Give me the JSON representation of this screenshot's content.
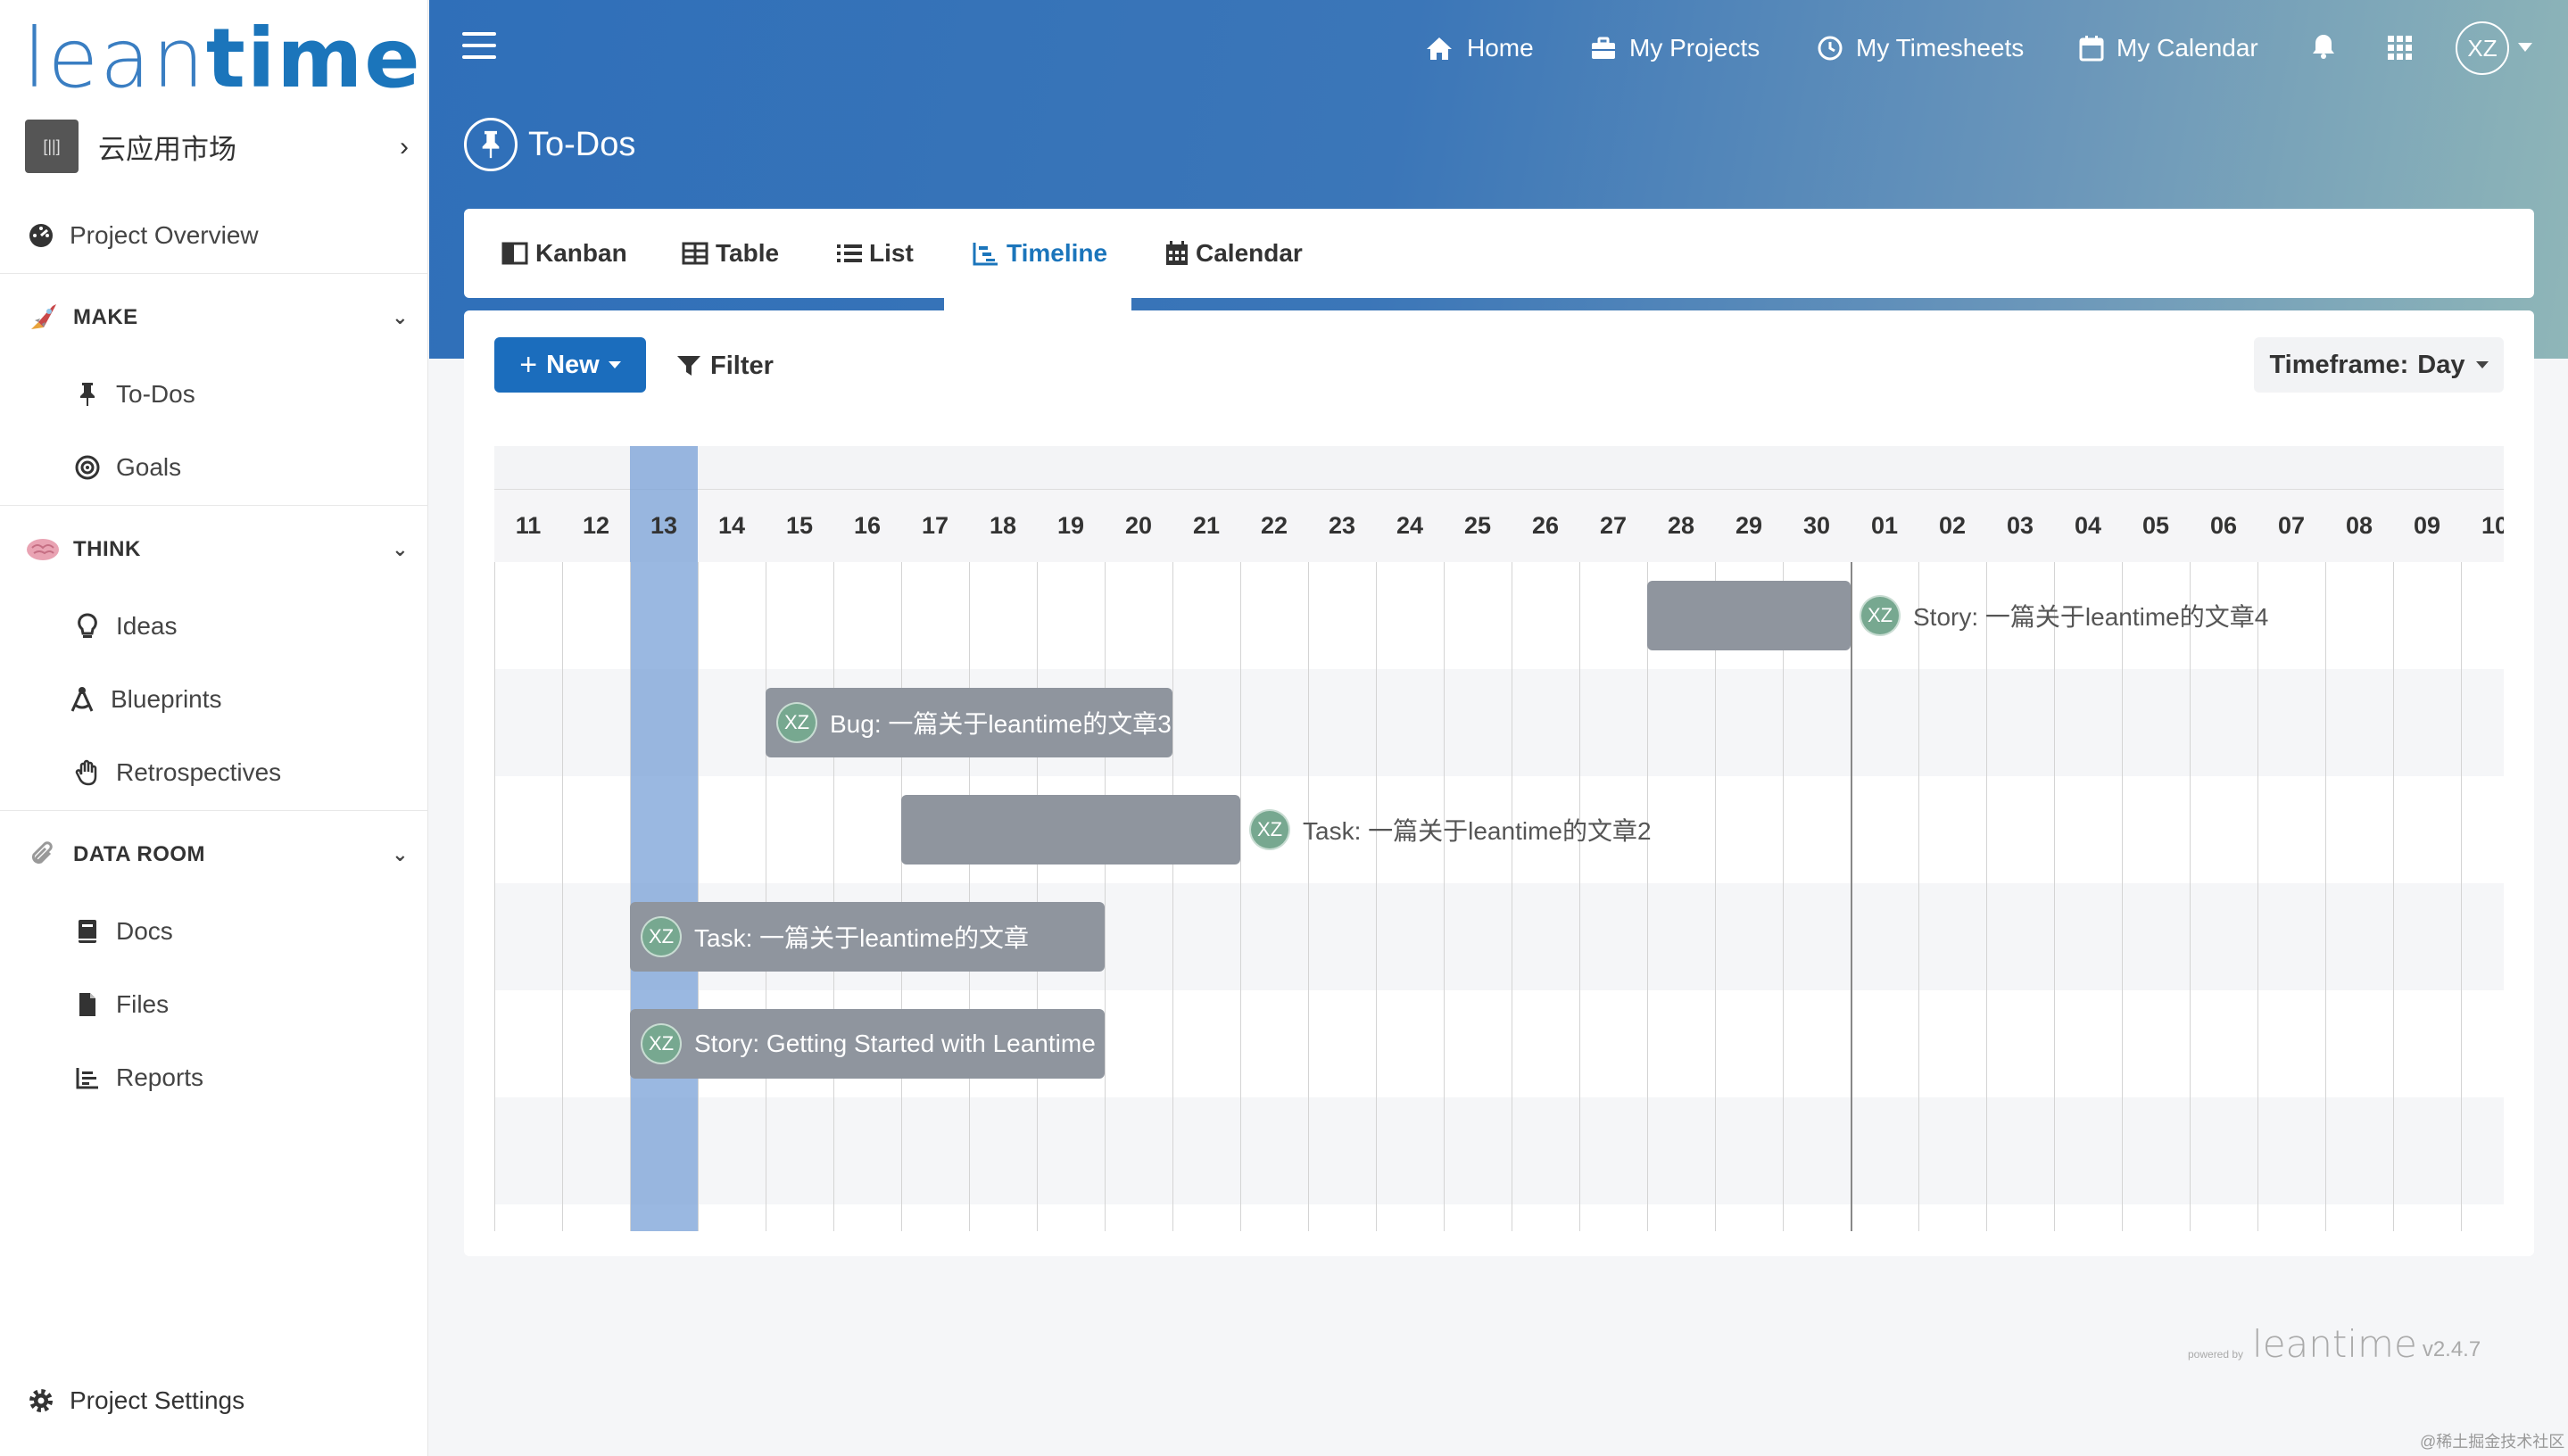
{
  "sidebar": {
    "logo_left": "lean",
    "logo_right": "time",
    "project": {
      "avatar": "[||]",
      "name": "云应用市场"
    },
    "overview": "Project Overview",
    "sections": [
      {
        "title": "MAKE",
        "items": [
          "To-Dos",
          "Goals"
        ]
      },
      {
        "title": "THINK",
        "items": [
          "Ideas",
          "Blueprints",
          "Retrospectives"
        ]
      },
      {
        "title": "DATA ROOM",
        "items": [
          "Docs",
          "Files",
          "Reports"
        ]
      }
    ],
    "settings": "Project Settings"
  },
  "header": {
    "nav": [
      "Home",
      "My Projects",
      "My Timesheets",
      "My Calendar"
    ],
    "user_initials": "XZ",
    "page_title": "To-Dos"
  },
  "tabs": [
    "Kanban",
    "Table",
    "List",
    "Timeline",
    "Calendar"
  ],
  "toolbar": {
    "new_label": "New",
    "filter_label": "Filter",
    "timeframe_label": "Timeframe:",
    "timeframe_value": "Day"
  },
  "gantt": {
    "days": [
      "11",
      "12",
      "13",
      "14",
      "15",
      "16",
      "17",
      "18",
      "19",
      "20",
      "21",
      "22",
      "23",
      "24",
      "25",
      "26",
      "27",
      "28",
      "29",
      "30",
      "01",
      "02",
      "03",
      "04",
      "05",
      "06",
      "07",
      "08",
      "09",
      "10"
    ],
    "today_index": 2,
    "month_boundary_index": 20,
    "tasks": [
      {
        "label": "Story: 一篇关于leantime的文章4",
        "start": 17,
        "end": 20,
        "label_inside": false,
        "avatar": "XZ"
      },
      {
        "label": "Bug: 一篇关于leantime的文章3",
        "start": 4,
        "end": 10,
        "label_inside": true,
        "avatar": "XZ"
      },
      {
        "label": "Task: 一篇关于leantime的文章2",
        "start": 6,
        "end": 11,
        "label_inside": false,
        "avatar": "XZ"
      },
      {
        "label": "Task: 一篇关于leantime的文章",
        "start": 2,
        "end": 9,
        "label_inside": true,
        "avatar": "XZ"
      },
      {
        "label": "Story: Getting Started with Leantime",
        "start": 2,
        "end": 9,
        "label_inside": true,
        "avatar": "XZ"
      }
    ]
  },
  "footer": {
    "powered_by": "powered by",
    "logo": "leantime",
    "version": "v2.4.7",
    "watermark": "@稀土掘金技术社区"
  },
  "colors": {
    "primary": "#1b6dbd",
    "bar": "#8f959e",
    "today": "#7ba0d7"
  }
}
